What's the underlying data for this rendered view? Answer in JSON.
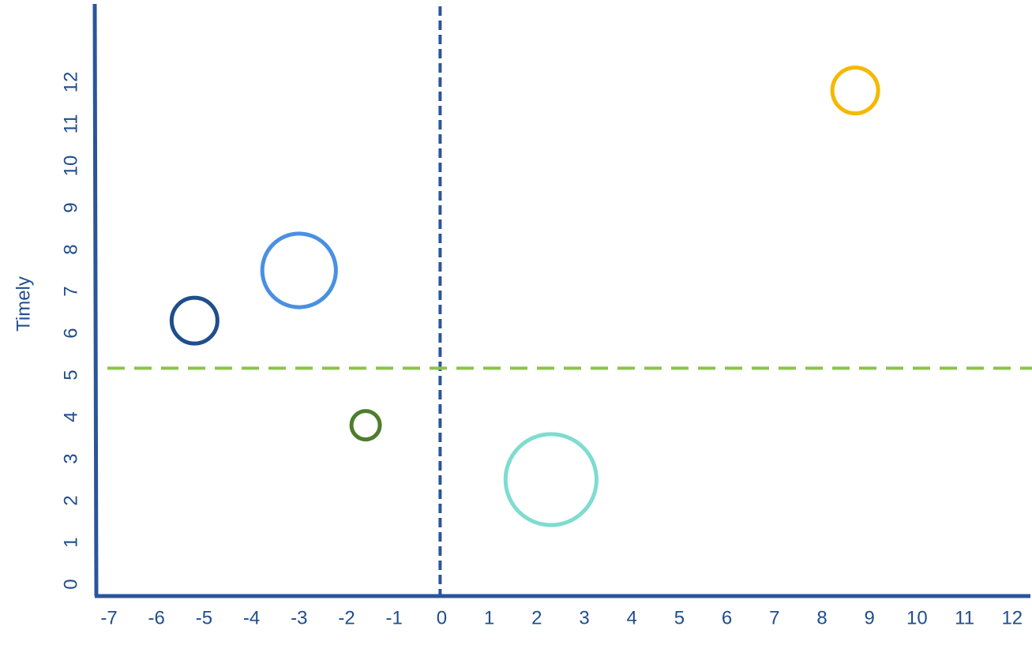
{
  "chart_data": {
    "type": "scatter",
    "title": "",
    "xlabel": "",
    "ylabel": "Timely",
    "xlim": [
      -7,
      12
    ],
    "ylim": [
      0,
      12.7
    ],
    "x_ticks": [
      "-7",
      "-6",
      "-5",
      "-4",
      "-3",
      "-2",
      "-1",
      "0",
      "1",
      "2",
      "3",
      "4",
      "5",
      "6",
      "7",
      "8",
      "9",
      "10",
      "11",
      "12"
    ],
    "y_ticks": [
      "0",
      "1",
      "2",
      "3",
      "4",
      "5",
      "6",
      "7",
      "8",
      "9",
      "10",
      "11",
      "12"
    ],
    "grid": false,
    "legend": "none",
    "reference_lines": [
      {
        "orientation": "vertical",
        "value": 0,
        "color": "#2a5599",
        "style": "dashed"
      },
      {
        "orientation": "horizontal",
        "value": 5.2,
        "color": "#8bc34a",
        "style": "dashed"
      }
    ],
    "points": [
      {
        "x": -5.2,
        "y": 6.3,
        "size": 1.0,
        "color": "#1f4e8c"
      },
      {
        "x": -3.0,
        "y": 7.5,
        "size": 1.8,
        "color": "#4a90e2"
      },
      {
        "x": -1.6,
        "y": 3.8,
        "size": 0.5,
        "color": "#4e7d2c"
      },
      {
        "x": 2.3,
        "y": 2.5,
        "size": 2.3,
        "color": "#7edcd0"
      },
      {
        "x": 8.7,
        "y": 11.8,
        "size": 1.0,
        "color": "#f5b800"
      }
    ]
  },
  "colors": {
    "axis": "#2a5599",
    "tick_text": "#1f4e8c"
  }
}
